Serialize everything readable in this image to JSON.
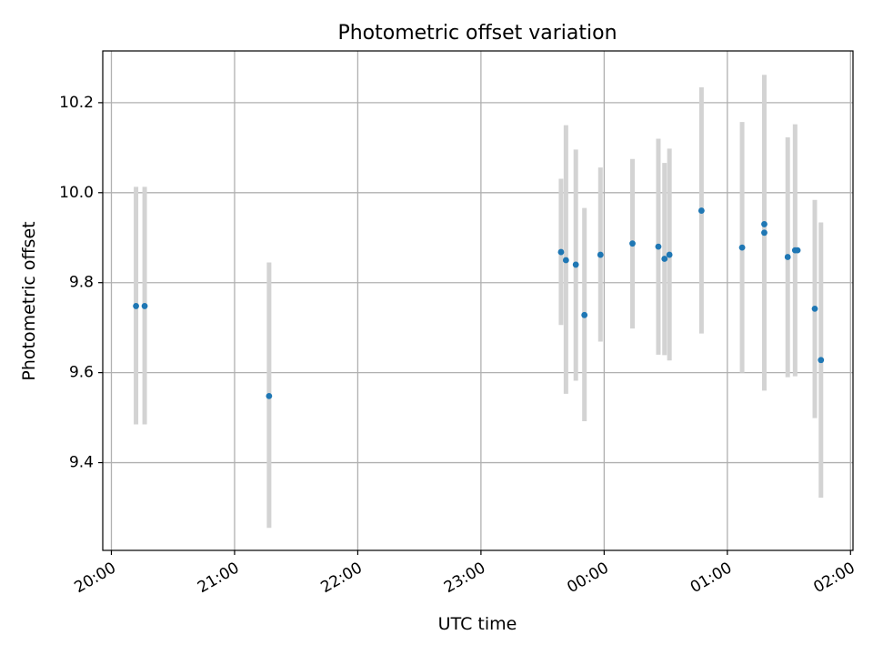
{
  "chart_data": {
    "type": "scatter",
    "title": "Photometric offset variation",
    "xlabel": "UTC time",
    "ylabel": "Photometric offset",
    "grid": true,
    "x_unit": "hours after 20:00 UTC",
    "xlim": [
      -0.07,
      6.02
    ],
    "ylim": [
      9.205,
      10.315
    ],
    "x_ticks": [
      {
        "value": 0,
        "label": "20:00"
      },
      {
        "value": 1,
        "label": "21:00"
      },
      {
        "value": 2,
        "label": "22:00"
      },
      {
        "value": 3,
        "label": "23:00"
      },
      {
        "value": 4,
        "label": "00:00"
      },
      {
        "value": 5,
        "label": "01:00"
      },
      {
        "value": 6,
        "label": "02:00"
      }
    ],
    "y_ticks": [
      {
        "value": 9.4,
        "label": "9.4"
      },
      {
        "value": 9.6,
        "label": "9.6"
      },
      {
        "value": 9.8,
        "label": "9.8"
      },
      {
        "value": 10.0,
        "label": "10.0"
      },
      {
        "value": 10.2,
        "label": "10.2"
      }
    ],
    "point_color": "#1f77b4",
    "errorbar_color": "#d3d3d3",
    "points": [
      {
        "x": 0.2,
        "y": 9.748,
        "err_low": 9.485,
        "err_high": 10.013
      },
      {
        "x": 0.27,
        "y": 9.748,
        "err_low": 9.485,
        "err_high": 10.013
      },
      {
        "x": 1.28,
        "y": 9.548,
        "err_low": 9.255,
        "err_high": 9.845
      },
      {
        "x": 3.65,
        "y": 9.868,
        "err_low": 9.706,
        "err_high": 10.031
      },
      {
        "x": 3.69,
        "y": 9.85,
        "err_low": 9.553,
        "err_high": 10.15
      },
      {
        "x": 3.77,
        "y": 9.84,
        "err_low": 9.582,
        "err_high": 10.096
      },
      {
        "x": 3.84,
        "y": 9.728,
        "err_low": 9.492,
        "err_high": 9.966
      },
      {
        "x": 3.97,
        "y": 9.862,
        "err_low": 9.669,
        "err_high": 10.056
      },
      {
        "x": 4.23,
        "y": 9.887,
        "err_low": 9.698,
        "err_high": 10.075
      },
      {
        "x": 4.44,
        "y": 9.88,
        "err_low": 9.64,
        "err_high": 10.12
      },
      {
        "x": 4.49,
        "y": 9.853,
        "err_low": 9.639,
        "err_high": 10.066
      },
      {
        "x": 4.53,
        "y": 9.862,
        "err_low": 9.627,
        "err_high": 10.098
      },
      {
        "x": 4.79,
        "y": 9.96,
        "err_low": 9.687,
        "err_high": 10.234
      },
      {
        "x": 5.12,
        "y": 9.878,
        "err_low": 9.6,
        "err_high": 10.157
      },
      {
        "x": 5.3,
        "y": 9.93,
        "err_low": 9.93,
        "err_high": 9.93
      },
      {
        "x": 5.3,
        "y": 9.911,
        "err_low": 9.56,
        "err_high": 10.262
      },
      {
        "x": 5.49,
        "y": 9.857,
        "err_low": 9.59,
        "err_high": 10.123
      },
      {
        "x": 5.55,
        "y": 9.872,
        "err_low": 9.592,
        "err_high": 10.152
      },
      {
        "x": 5.57,
        "y": 9.872,
        "err_low": 9.872,
        "err_high": 9.872
      },
      {
        "x": 5.71,
        "y": 9.742,
        "err_low": 9.499,
        "err_high": 9.984
      },
      {
        "x": 5.76,
        "y": 9.628,
        "err_low": 9.322,
        "err_high": 9.934
      }
    ]
  }
}
